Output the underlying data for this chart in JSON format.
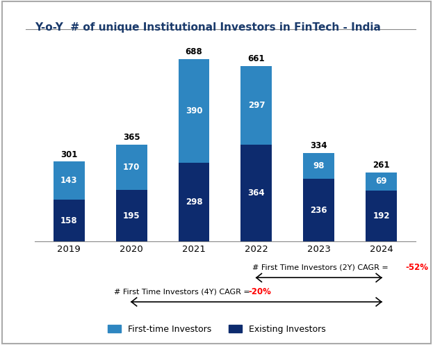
{
  "title": "Y-o-Y  # of unique Institutional Investors in FinTech - India",
  "years": [
    "2019",
    "2020",
    "2021",
    "2022",
    "2023",
    "2024"
  ],
  "existing_investors": [
    158,
    195,
    298,
    364,
    236,
    192
  ],
  "first_time_investors": [
    143,
    170,
    390,
    297,
    98,
    69
  ],
  "totals": [
    301,
    365,
    688,
    661,
    334,
    261
  ],
  "color_existing": "#0d2b6e",
  "color_first_time": "#2e86c1",
  "background_color": "#ffffff",
  "bar_width": 0.5,
  "cagr_2y_text": "# First Time Investors (2Y) CAGR = ",
  "cagr_2y_value": "-52%",
  "cagr_4y_text": "# First Time Investors (4Y) CAGR = ",
  "cagr_4y_value": "-20%",
  "legend_first_time": "First-time Investors",
  "legend_existing": "Existing Investors",
  "title_color": "#1a3a6b",
  "title_fontsize": 11
}
